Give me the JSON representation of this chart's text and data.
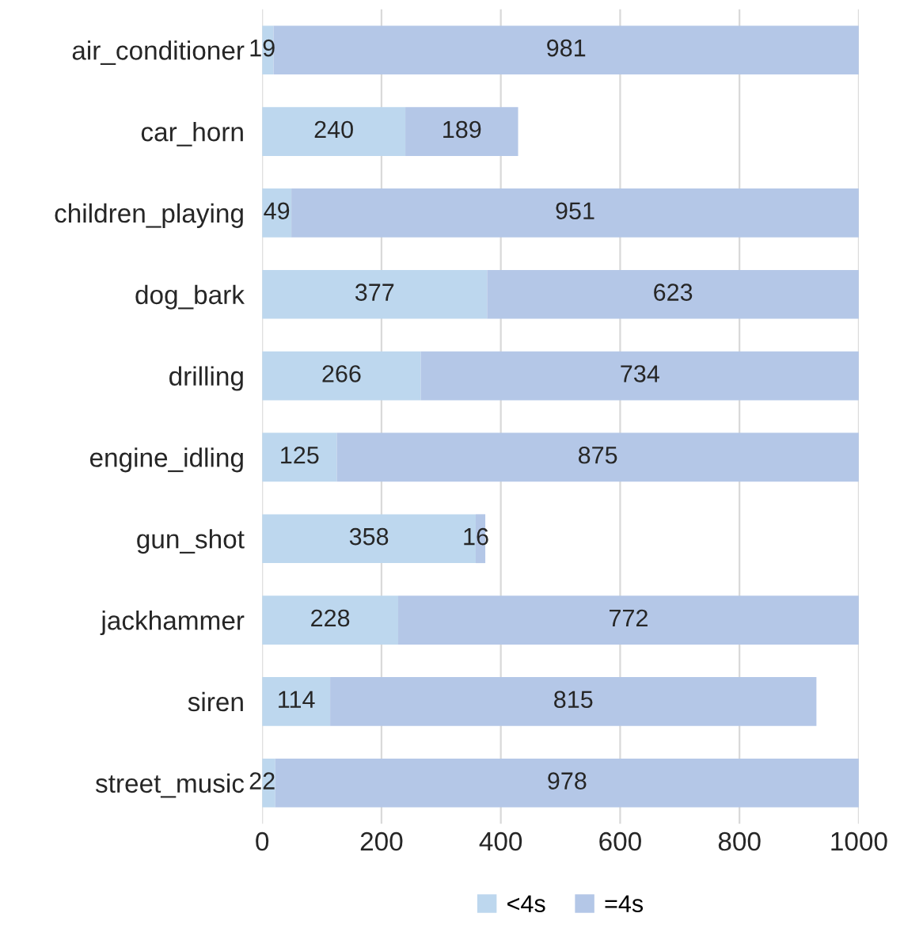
{
  "chart_data": {
    "type": "bar",
    "orientation": "horizontal",
    "stacked": true,
    "categories": [
      "air_conditioner",
      "car_horn",
      "children_playing",
      "dog_bark",
      "drilling",
      "engine_idling",
      "gun_shot",
      "jackhammer",
      "siren",
      "street_music"
    ],
    "series": [
      {
        "name": "<4s",
        "color": "#bdd7ee",
        "values": [
          19,
          240,
          49,
          377,
          266,
          125,
          358,
          228,
          114,
          22
        ]
      },
      {
        "name": "=4s",
        "color": "#b4c7e7",
        "values": [
          981,
          189,
          951,
          623,
          734,
          875,
          16,
          772,
          815,
          978
        ]
      }
    ],
    "xlim": [
      0,
      1000
    ],
    "xticks": [
      0,
      200,
      400,
      600,
      800,
      1000
    ],
    "grid": "x",
    "legend": "bottom",
    "data_labels": true
  }
}
